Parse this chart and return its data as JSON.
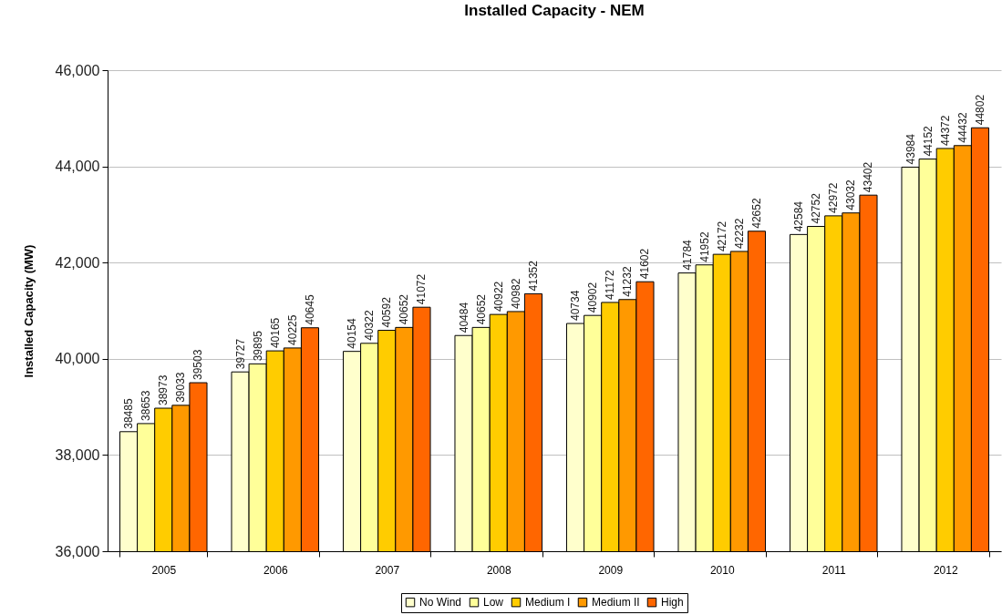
{
  "chart_data": {
    "type": "bar",
    "title": "Installed Capacity - NEM",
    "ylabel": "Installed Capacity (MW)",
    "categories": [
      "2005",
      "2006",
      "2007",
      "2008",
      "2009",
      "2010",
      "2011",
      "2012"
    ],
    "series": [
      {
        "name": "No Wind",
        "color": "#ffffcc",
        "values": [
          38485,
          39727,
          40154,
          40484,
          40734,
          41784,
          42584,
          43984
        ]
      },
      {
        "name": "Low",
        "color": "#ffff99",
        "values": [
          38653,
          39895,
          40322,
          40652,
          40902,
          41952,
          42752,
          44152
        ]
      },
      {
        "name": "Medium I",
        "color": "#ffcc00",
        "values": [
          38973,
          40165,
          40592,
          40922,
          41172,
          42172,
          42972,
          44372
        ]
      },
      {
        "name": "Medium II",
        "color": "#ff9900",
        "values": [
          39033,
          40225,
          40652,
          40982,
          41232,
          42232,
          43032,
          44432
        ]
      },
      {
        "name": "High",
        "color": "#ff6600",
        "values": [
          39503,
          40645,
          41072,
          41352,
          41602,
          42652,
          43402,
          44802
        ]
      }
    ],
    "ylim": [
      36000,
      46000
    ],
    "yticks": [
      {
        "value": 36000,
        "label": "36,000"
      },
      {
        "value": 38000,
        "label": "38,000"
      },
      {
        "value": 40000,
        "label": "40,000"
      },
      {
        "value": 42000,
        "label": "42,000"
      },
      {
        "value": 44000,
        "label": "44,000"
      },
      {
        "value": 46000,
        "label": "46,000"
      }
    ],
    "grid": "y",
    "legend": "bottom",
    "data_labels": true
  }
}
